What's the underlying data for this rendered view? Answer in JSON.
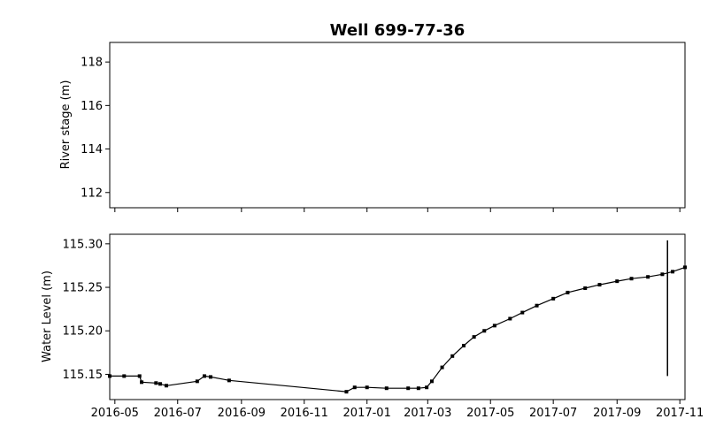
{
  "chart_data": [
    {
      "type": "line",
      "title": "Well 699-77-36",
      "xlabel": "",
      "ylabel": "River stage (m)",
      "xlim": [
        "2016-04-26",
        "2017-11-06"
      ],
      "ylim": [
        111.3,
        118.9
      ],
      "yticks": [
        112,
        114,
        116,
        118
      ],
      "ytick_labels": [
        "112",
        "114",
        "116",
        "118"
      ],
      "xticks": [
        "2016-05-01",
        "2016-07-01",
        "2016-09-01",
        "2016-11-01",
        "2017-01-01",
        "2017-03-01",
        "2017-05-01",
        "2017-07-01",
        "2017-09-01",
        "2017-11-01"
      ],
      "xtick_labels": [],
      "series": [],
      "grid": false
    },
    {
      "type": "line",
      "title": "",
      "xlabel": "",
      "ylabel": "Water Level (m)",
      "xlim": [
        "2016-04-26",
        "2017-11-06"
      ],
      "ylim": [
        115.121,
        115.311
      ],
      "yticks": [
        115.15,
        115.2,
        115.25,
        115.3
      ],
      "ytick_labels": [
        "115.15",
        "115.20",
        "115.25",
        "115.30"
      ],
      "xticks": [
        "2016-05-01",
        "2016-07-01",
        "2016-09-01",
        "2016-11-01",
        "2017-01-01",
        "2017-03-01",
        "2017-05-01",
        "2017-07-01",
        "2017-09-01",
        "2017-11-01"
      ],
      "xtick_labels": [
        "2016-05",
        "2016-07",
        "2016-09",
        "2016-11",
        "2017-01",
        "2017-03",
        "2017-05",
        "2017-07",
        "2017-09",
        "2017-11"
      ],
      "grid": false,
      "series": [
        {
          "name": "Water Level",
          "color": "#000000",
          "x": [
            "2016-04-26",
            "2016-05-10",
            "2016-05-25",
            "2016-05-27",
            "2016-06-10",
            "2016-06-14",
            "2016-06-20",
            "2016-07-20",
            "2016-07-27",
            "2016-08-02",
            "2016-08-20",
            "2016-12-12",
            "2016-12-20",
            "2017-01-01",
            "2017-01-20",
            "2017-02-10",
            "2017-02-20",
            "2017-02-28",
            "2017-03-05",
            "2017-03-15",
            "2017-03-25",
            "2017-04-05",
            "2017-04-15",
            "2017-04-25",
            "2017-05-05",
            "2017-05-20",
            "2017-06-01",
            "2017-06-15",
            "2017-07-01",
            "2017-07-15",
            "2017-08-01",
            "2017-08-15",
            "2017-09-01",
            "2017-09-15",
            "2017-10-01",
            "2017-10-15",
            "2017-10-25",
            "2017-11-06"
          ],
          "y": [
            115.148,
            115.148,
            115.148,
            115.141,
            115.14,
            115.139,
            115.137,
            115.142,
            115.148,
            115.147,
            115.143,
            115.13,
            115.135,
            115.135,
            115.134,
            115.134,
            115.134,
            115.135,
            115.142,
            115.158,
            115.171,
            115.183,
            115.193,
            115.2,
            115.206,
            115.214,
            115.221,
            115.229,
            115.237,
            115.244,
            115.249,
            115.253,
            115.257,
            115.26,
            115.262,
            115.265,
            115.268,
            115.273
          ]
        }
      ],
      "spikes": [
        {
          "x": "2017-10-20",
          "y_min": 115.148,
          "y_max": 115.304
        }
      ]
    }
  ]
}
